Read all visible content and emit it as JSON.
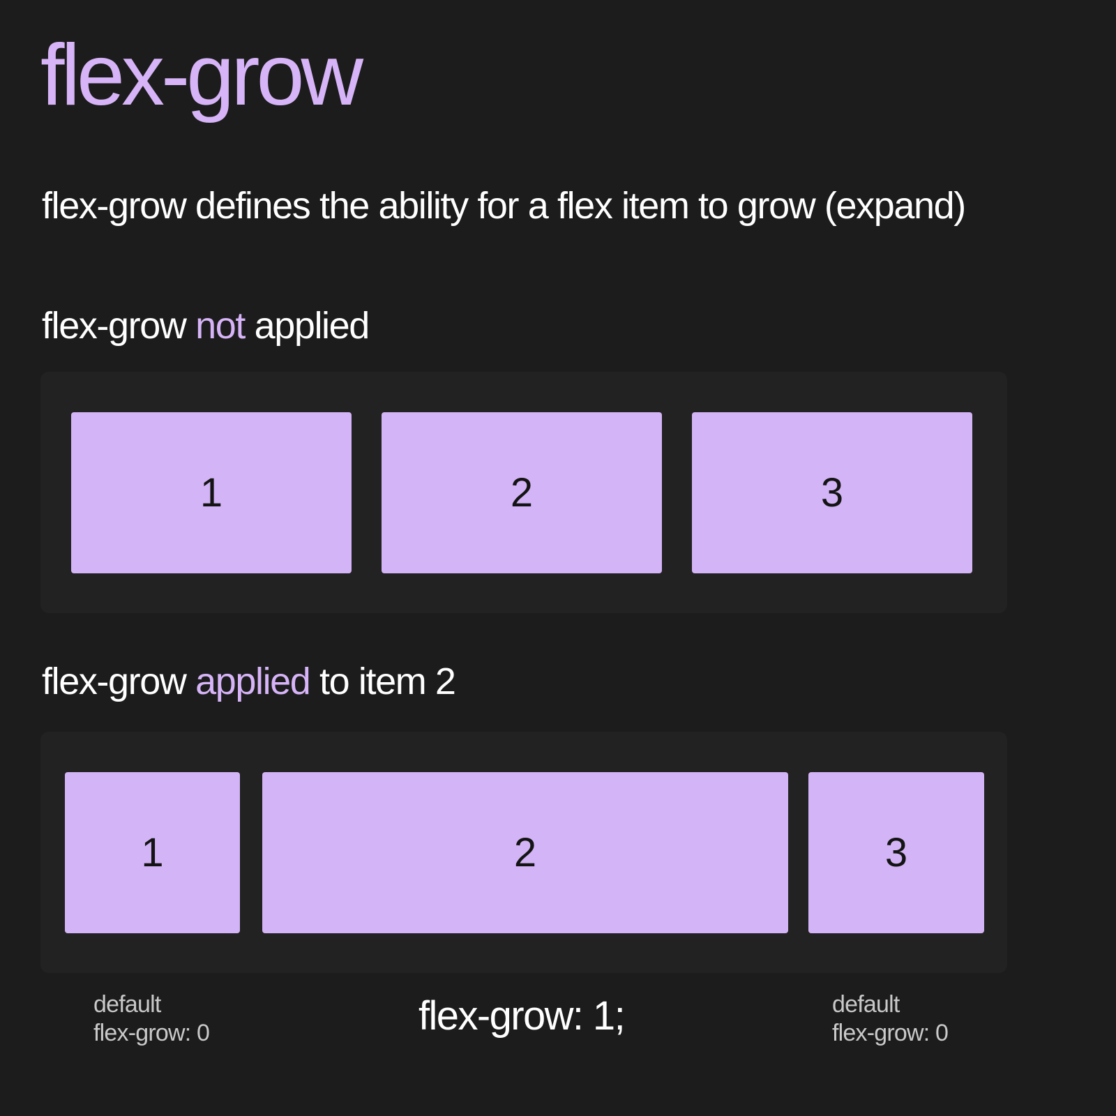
{
  "title": "flex-grow",
  "description": "flex-grow defines the ability for a flex item to grow (expand)",
  "section_not_applied": {
    "heading_prefix": "flex-grow",
    "heading_accent": "not",
    "heading_suffix": "applied",
    "items": [
      "1",
      "2",
      "3"
    ]
  },
  "section_applied": {
    "heading_prefix": "flex-grow",
    "heading_accent": "applied",
    "heading_suffix": "to item 2",
    "items": [
      "1",
      "2",
      "3"
    ]
  },
  "annotations": {
    "left_line1": "default",
    "left_line2": "flex-grow: 0",
    "center": "flex-grow: 1;",
    "right_line1": "default",
    "right_line2": "flex-grow: 0"
  },
  "colors": {
    "background": "#1c1c1c",
    "panel": "#222222",
    "accent": "#d6b4f7",
    "box": "#d3b4f6"
  }
}
